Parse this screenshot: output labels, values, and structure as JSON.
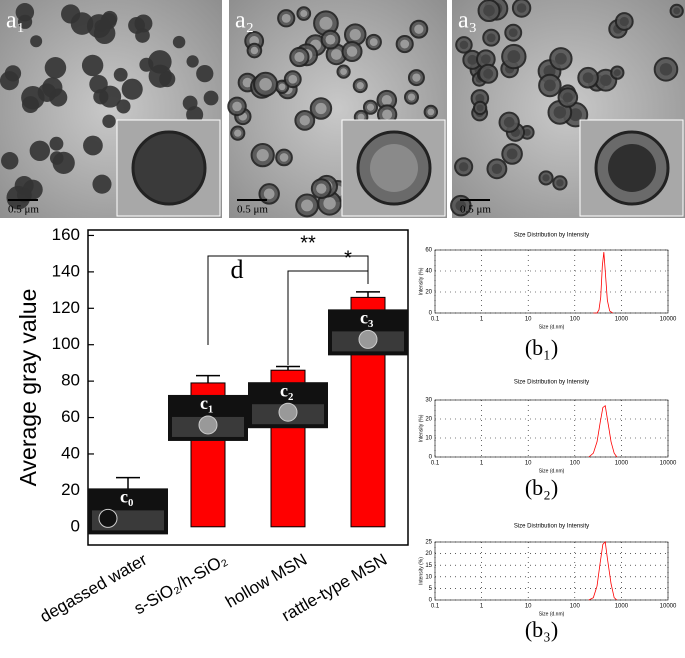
{
  "panels": [
    {
      "label": "a₁",
      "scale_bar": "0.5 μm"
    },
    {
      "label": "a₂",
      "scale_bar": "0.5 μm"
    },
    {
      "label": "a₃",
      "scale_bar": "0.5 μm"
    }
  ],
  "chart_data": [
    {
      "type": "bar",
      "panel_label": "d",
      "ylabel": "Average gray value",
      "categories": [
        "degassed water",
        "s-SiO₂/h-SiO₂",
        "hollow MSN",
        "rattle-type MSN"
      ],
      "values": [
        20,
        79,
        86,
        126
      ],
      "errors": [
        7,
        4,
        2,
        3
      ],
      "color": "#ff0000",
      "ylim": [
        -10,
        163
      ],
      "yticks": [
        0,
        20,
        40,
        60,
        80,
        100,
        120,
        140,
        160
      ],
      "inset_labels": [
        "c₀",
        "c₁",
        "c₂",
        "c₃"
      ],
      "significance": [
        "**",
        "*"
      ]
    },
    {
      "type": "line",
      "panel_label": "(b₁)",
      "title": "Size Distribution by Intensity",
      "xlabel": "Size (d.nm)",
      "ylabel": "Intensity (%)",
      "xscale": "log",
      "xlim": [
        0.1,
        10000
      ],
      "xticks": [
        0.1,
        1,
        10,
        100,
        1000,
        10000
      ],
      "ylim": [
        0,
        60
      ],
      "yticks": [
        0,
        20,
        40,
        60
      ],
      "grid": true,
      "series": [
        {
          "color": "#ff0000",
          "x": [
            250,
            300,
            330,
            360,
            390,
            420,
            450,
            500,
            560,
            650
          ],
          "values": [
            0,
            0,
            3,
            15,
            45,
            58,
            40,
            12,
            2,
            0
          ]
        }
      ]
    },
    {
      "type": "line",
      "panel_label": "(b₂)",
      "title": "Size Distribution by Intensity",
      "xlabel": "Size (d.nm)",
      "ylabel": "Intensity (%)",
      "xscale": "log",
      "xlim": [
        0.1,
        10000
      ],
      "xticks": [
        0.1,
        1,
        10,
        100,
        1000,
        10000
      ],
      "ylim": [
        0,
        30
      ],
      "yticks": [
        0,
        10,
        20,
        30
      ],
      "grid": true,
      "series": [
        {
          "color": "#ff0000",
          "x": [
            200,
            250,
            300,
            350,
            400,
            450,
            500,
            600,
            700,
            800
          ],
          "values": [
            0,
            2,
            8,
            18,
            26,
            27,
            20,
            8,
            2,
            0
          ]
        }
      ]
    },
    {
      "type": "line",
      "panel_label": "(b₃)",
      "title": "Size Distribution by Intensity",
      "xlabel": "Size (d.nm)",
      "ylabel": "Intensity (%)",
      "xscale": "log",
      "xlim": [
        0.1,
        10000
      ],
      "xticks": [
        0.1,
        1,
        10,
        100,
        1000,
        10000
      ],
      "ylim": [
        0,
        25
      ],
      "yticks": [
        0,
        5,
        10,
        15,
        20,
        25
      ],
      "grid": true,
      "series": [
        {
          "color": "#ff0000",
          "x": [
            200,
            250,
            300,
            350,
            400,
            450,
            500,
            600,
            700,
            800
          ],
          "values": [
            0,
            1,
            6,
            16,
            24,
            25,
            18,
            7,
            1,
            0
          ]
        }
      ]
    }
  ]
}
